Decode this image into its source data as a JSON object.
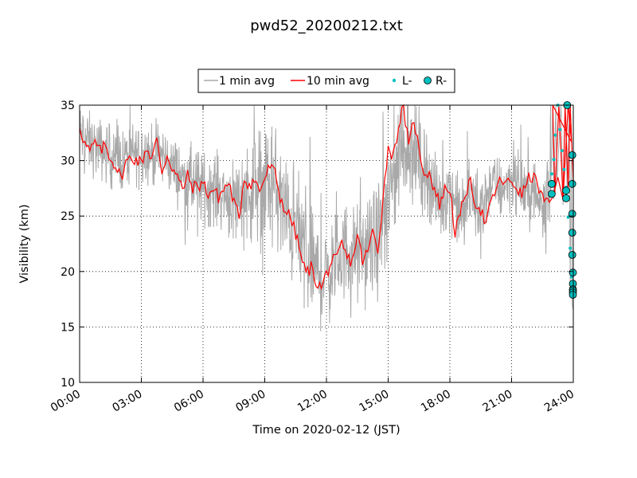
{
  "chart_data": {
    "type": "line",
    "title": "pwd52_20200212.txt",
    "xlabel": "Time on 2020-02-12 (JST)",
    "ylabel": "Visibility (km)",
    "xlim": [
      "00:00",
      "24:00"
    ],
    "ylim": [
      10,
      35
    ],
    "xticks": [
      "00:00",
      "03:00",
      "06:00",
      "09:00",
      "12:00",
      "15:00",
      "18:00",
      "21:00",
      "24:00"
    ],
    "yticks": [
      "10",
      "15",
      "20",
      "25",
      "30",
      "35"
    ],
    "grid": true,
    "grid_style": "dotted",
    "legend": {
      "placement": "top-center",
      "entries": [
        "1 min avg",
        "10 min avg",
        "L-",
        "R-"
      ]
    },
    "colors": {
      "one_min": "#a9a9a9",
      "ten_min": "#ff0000",
      "markers": "#00bfbf"
    },
    "series": [
      {
        "name": "1 min avg",
        "style": "line",
        "x_hours": [
          0,
          0.5,
          1,
          1.5,
          2,
          2.5,
          3,
          3.5,
          4,
          4.5,
          5,
          5.5,
          6,
          6.5,
          7,
          7.5,
          8,
          8.5,
          9,
          9.5,
          10,
          10.5,
          11,
          11.5,
          12,
          12.5,
          13,
          13.5,
          14,
          14.5,
          15,
          15.5,
          16,
          16.5,
          17,
          17.5,
          18,
          18.5,
          19,
          19.5,
          20,
          20.5,
          21,
          21.5,
          22,
          22.5,
          23,
          23.5,
          24
        ],
        "values": [
          32.5,
          31.5,
          31,
          30.5,
          30,
          30.5,
          31,
          30.5,
          30.5,
          29.5,
          28.5,
          28,
          27.5,
          27.5,
          27,
          26.5,
          27,
          27.5,
          28,
          27.5,
          25,
          24,
          22,
          20,
          19.5,
          21,
          22,
          21.5,
          22,
          23,
          26,
          30.5,
          32,
          30,
          28.5,
          26,
          27.5,
          25,
          27,
          25.5,
          28,
          27.5,
          28.5,
          27.5,
          27,
          26,
          30,
          30,
          26
        ],
        "spread": [
          2.5,
          2.5,
          2.5,
          2.5,
          2.5,
          2.5,
          2.5,
          2.5,
          2.5,
          2.5,
          2.5,
          3,
          3,
          3,
          3,
          3.5,
          4,
          4.5,
          5,
          5,
          5,
          5,
          5,
          4.5,
          4,
          4,
          4,
          4,
          4,
          4.5,
          5,
          5,
          4.5,
          4,
          3.5,
          3,
          3,
          3,
          3,
          3,
          2.5,
          2.5,
          2.5,
          2.5,
          2.5,
          2.5,
          5,
          5,
          5
        ]
      },
      {
        "name": "10 min avg",
        "style": "line",
        "x_hours": [
          0,
          0.25,
          0.5,
          0.75,
          1,
          1.25,
          1.5,
          1.75,
          2,
          2.25,
          2.5,
          2.75,
          3,
          3.25,
          3.5,
          3.75,
          4,
          4.25,
          4.5,
          4.75,
          5,
          5.25,
          5.5,
          5.75,
          6,
          6.25,
          6.5,
          6.75,
          7,
          7.25,
          7.5,
          7.75,
          8,
          8.25,
          8.5,
          8.75,
          9,
          9.25,
          9.5,
          9.75,
          10,
          10.25,
          10.5,
          10.75,
          11,
          11.25,
          11.5,
          11.75,
          12,
          12.25,
          12.5,
          12.75,
          13,
          13.25,
          13.5,
          13.75,
          14,
          14.25,
          14.5,
          14.75,
          15,
          15.25,
          15.5,
          15.75,
          16,
          16.25,
          16.5,
          16.75,
          17,
          17.25,
          17.5,
          17.75,
          18,
          18.25,
          18.5,
          18.75,
          19,
          19.25,
          19.5,
          19.75,
          20,
          20.25,
          20.5,
          20.75,
          21,
          21.25,
          21.5,
          21.75,
          22,
          22.25,
          22.5,
          22.75,
          23,
          23.25,
          23.5,
          23.75,
          24
        ],
        "values": [
          33.2,
          31.5,
          30.8,
          31.6,
          30.8,
          31.4,
          30.2,
          29.6,
          28.4,
          29.8,
          30.3,
          30.1,
          29.8,
          31.2,
          30.2,
          31.8,
          29.0,
          30.5,
          29.4,
          28.5,
          27.4,
          28.6,
          27.6,
          27.7,
          28.0,
          27.0,
          27.4,
          26.7,
          27.4,
          28.0,
          26.2,
          24.9,
          28.5,
          27.8,
          28.2,
          27.3,
          28.4,
          29.5,
          28.8,
          26.7,
          25.5,
          24.9,
          23.4,
          21.5,
          19.8,
          20.4,
          19.1,
          18.5,
          19.8,
          20.9,
          21.0,
          22.5,
          21.2,
          20.9,
          23.3,
          21.0,
          21.7,
          23.6,
          22.0,
          26.5,
          31.3,
          30.4,
          33.1,
          35.0,
          31.0,
          33.9,
          30.8,
          29.0,
          28.9,
          27.4,
          26.1,
          27.4,
          27.5,
          23.5,
          25.0,
          27.2,
          27.9,
          26.2,
          25.6,
          24.2,
          26.2,
          27.5,
          28.3,
          27.9,
          28.1,
          27.6,
          26.8,
          28.2,
          28.6,
          28.0,
          26.6,
          26.0,
          26.7,
          28.5,
          26.5,
          35.0,
          30.0
        ]
      },
      {
        "name": "L-",
        "style": "points",
        "x_hours": [
          22.95,
          23.05,
          23.12,
          23.25,
          23.35,
          23.45,
          23.55,
          23.65,
          23.75,
          23.85,
          23.92
        ],
        "values": [
          28.8,
          30.1,
          32.3,
          35.0,
          32.8,
          30.9,
          29.2,
          27.6,
          24.9,
          22.1,
          19.5
        ]
      },
      {
        "name": "R-",
        "style": "points",
        "x_hours": [
          22.95,
          22.95,
          23.65,
          23.65,
          23.7,
          23.95,
          23.95,
          23.95,
          23.95,
          23.95,
          23.98,
          23.98,
          23.98,
          23.98,
          23.98,
          23.98
        ],
        "values": [
          27.9,
          27.0,
          27.3,
          26.6,
          35.0,
          30.5,
          27.9,
          25.2,
          23.5,
          21.5,
          19.9,
          18.9,
          18.4,
          18.3,
          18.1,
          17.9
        ]
      }
    ]
  }
}
